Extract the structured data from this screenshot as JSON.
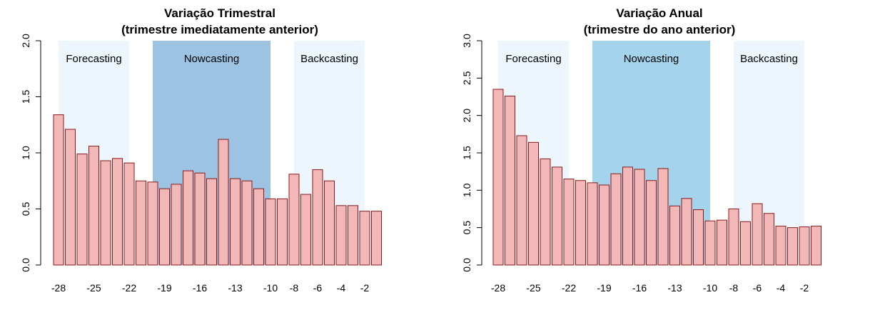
{
  "chart_data": [
    {
      "type": "bar",
      "title": "Variação Trimestral",
      "subtitle": "(trimestre imediatamente anterior)",
      "xlabel": "",
      "ylabel": "",
      "ylim": [
        0,
        2.0
      ],
      "yticks": [
        "0.0",
        "0.5",
        "1.0",
        "1.5",
        "2.0"
      ],
      "grid": false,
      "legend": "none",
      "bar_color": "#f2b8b8",
      "bar_border": "#8b1a1a",
      "categories": [
        -28,
        -27,
        -26,
        -25,
        -24,
        -23,
        -22,
        -21,
        -20,
        -19,
        -18,
        -17,
        -16,
        -15,
        -14,
        -13,
        -12,
        -11,
        -10,
        -9,
        -8,
        -7,
        -6,
        -5,
        -4,
        -3,
        -2,
        -1
      ],
      "values": [
        1.34,
        1.21,
        0.99,
        1.06,
        0.93,
        0.95,
        0.91,
        0.75,
        0.74,
        0.68,
        0.72,
        0.84,
        0.82,
        0.77,
        1.12,
        0.77,
        0.75,
        0.68,
        0.59,
        0.59,
        0.81,
        0.63,
        0.85,
        0.75,
        0.53,
        0.53,
        0.48,
        0.48
      ],
      "xtick_labels": [
        {
          "cat": -28,
          "label": "-28"
        },
        {
          "cat": -25,
          "label": "-25"
        },
        {
          "cat": -22,
          "label": "-22"
        },
        {
          "cat": -19,
          "label": "-19"
        },
        {
          "cat": -16,
          "label": "-16"
        },
        {
          "cat": -13,
          "label": "-13"
        },
        {
          "cat": -10,
          "label": "-10"
        },
        {
          "cat": -8,
          "label": "-8"
        },
        {
          "cat": -6,
          "label": "-6"
        },
        {
          "cat": -4,
          "label": "-4"
        },
        {
          "cat": -2,
          "label": "-2"
        }
      ],
      "bands": [
        {
          "label": "Forecasting",
          "from": -28,
          "to": -22,
          "color": "#eef6fd"
        },
        {
          "label": "Nowcasting",
          "from": -20,
          "to": -10,
          "color": "#9dc3e3"
        },
        {
          "label": "Backcasting",
          "from": -8,
          "to": -2,
          "color": "#eef6fd"
        }
      ]
    },
    {
      "type": "bar",
      "title": "Variação Anual",
      "subtitle": "(trimestre do ano anterior)",
      "xlabel": "",
      "ylabel": "",
      "ylim": [
        0,
        3.0
      ],
      "yticks": [
        "0.0",
        "0.5",
        "1.0",
        "1.5",
        "2.0",
        "2.5",
        "3.0"
      ],
      "grid": false,
      "legend": "none",
      "bar_color": "#f2b8b8",
      "bar_border": "#8b1a1a",
      "categories": [
        -28,
        -27,
        -26,
        -25,
        -24,
        -23,
        -22,
        -21,
        -20,
        -19,
        -18,
        -17,
        -16,
        -15,
        -14,
        -13,
        -12,
        -11,
        -10,
        -9,
        -8,
        -7,
        -6,
        -5,
        -4,
        -3,
        -2,
        -1
      ],
      "values": [
        2.35,
        2.26,
        1.73,
        1.64,
        1.42,
        1.31,
        1.15,
        1.13,
        1.1,
        1.07,
        1.22,
        1.31,
        1.28,
        1.13,
        1.29,
        0.79,
        0.89,
        0.74,
        0.59,
        0.6,
        0.75,
        0.58,
        0.82,
        0.69,
        0.52,
        0.5,
        0.51,
        0.52
      ],
      "xtick_labels": [
        {
          "cat": -28,
          "label": "-28"
        },
        {
          "cat": -25,
          "label": "-25"
        },
        {
          "cat": -22,
          "label": "-22"
        },
        {
          "cat": -19,
          "label": "-19"
        },
        {
          "cat": -16,
          "label": "-16"
        },
        {
          "cat": -13,
          "label": "-13"
        },
        {
          "cat": -10,
          "label": "-10"
        },
        {
          "cat": -8,
          "label": "-8"
        },
        {
          "cat": -6,
          "label": "-6"
        },
        {
          "cat": -4,
          "label": "-4"
        },
        {
          "cat": -2,
          "label": "-2"
        }
      ],
      "bands": [
        {
          "label": "Forecasting",
          "from": -28,
          "to": -22,
          "color": "#eef6fd"
        },
        {
          "label": "Nowcasting",
          "from": -20,
          "to": -10,
          "color": "#a4d3ec"
        },
        {
          "label": "Backcasting",
          "from": -8,
          "to": -2,
          "color": "#eef6fd"
        }
      ]
    }
  ]
}
